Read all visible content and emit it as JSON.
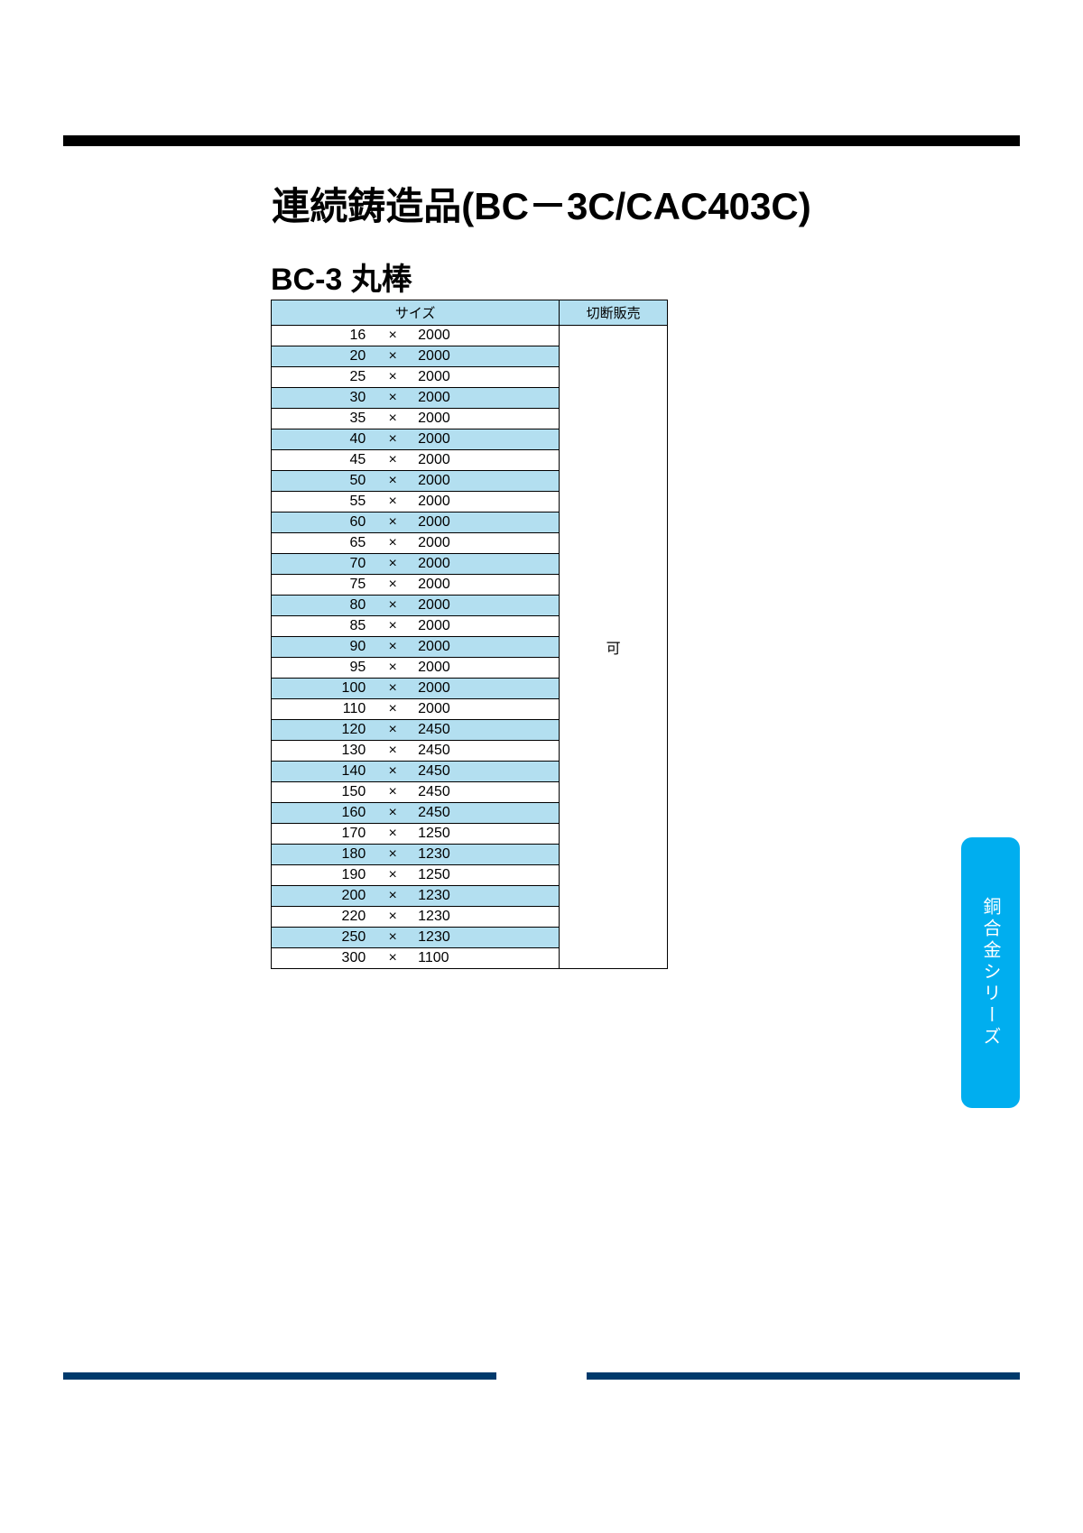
{
  "title": "連続鋳造品(BC－3C/CAC403C)",
  "subtitle": "BC-3 丸棒",
  "side_tab": "銅合金シリーズ",
  "table": {
    "headers": {
      "size": "サイズ",
      "cut_sale": "切断販売"
    },
    "cut_sale_value": "可",
    "rows": [
      {
        "dim": "16",
        "x": "×",
        "len": "2000"
      },
      {
        "dim": "20",
        "x": "×",
        "len": "2000"
      },
      {
        "dim": "25",
        "x": "×",
        "len": "2000"
      },
      {
        "dim": "30",
        "x": "×",
        "len": "2000"
      },
      {
        "dim": "35",
        "x": "×",
        "len": "2000"
      },
      {
        "dim": "40",
        "x": "×",
        "len": "2000"
      },
      {
        "dim": "45",
        "x": "×",
        "len": "2000"
      },
      {
        "dim": "50",
        "x": "×",
        "len": "2000"
      },
      {
        "dim": "55",
        "x": "×",
        "len": "2000"
      },
      {
        "dim": "60",
        "x": "×",
        "len": "2000"
      },
      {
        "dim": "65",
        "x": "×",
        "len": "2000"
      },
      {
        "dim": "70",
        "x": "×",
        "len": "2000"
      },
      {
        "dim": "75",
        "x": "×",
        "len": "2000"
      },
      {
        "dim": "80",
        "x": "×",
        "len": "2000"
      },
      {
        "dim": "85",
        "x": "×",
        "len": "2000"
      },
      {
        "dim": "90",
        "x": "×",
        "len": "2000"
      },
      {
        "dim": "95",
        "x": "×",
        "len": "2000"
      },
      {
        "dim": "100",
        "x": "×",
        "len": "2000"
      },
      {
        "dim": "110",
        "x": "×",
        "len": "2000"
      },
      {
        "dim": "120",
        "x": "×",
        "len": "2450"
      },
      {
        "dim": "130",
        "x": "×",
        "len": "2450"
      },
      {
        "dim": "140",
        "x": "×",
        "len": "2450"
      },
      {
        "dim": "150",
        "x": "×",
        "len": "2450"
      },
      {
        "dim": "160",
        "x": "×",
        "len": "2450"
      },
      {
        "dim": "170",
        "x": "×",
        "len": "1250"
      },
      {
        "dim": "180",
        "x": "×",
        "len": "1230"
      },
      {
        "dim": "190",
        "x": "×",
        "len": "1250"
      },
      {
        "dim": "200",
        "x": "×",
        "len": "1230"
      },
      {
        "dim": "220",
        "x": "×",
        "len": "1230"
      },
      {
        "dim": "250",
        "x": "×",
        "len": "1230"
      },
      {
        "dim": "300",
        "x": "×",
        "len": "1100"
      }
    ]
  },
  "colors": {
    "header_bg": "#b3dff0",
    "stripe_bg": "#b3dff0",
    "top_rule": "#000000",
    "bottom_rule": "#003a6c",
    "tab_bg": "#00aeef",
    "tab_text": "#ffffff"
  }
}
